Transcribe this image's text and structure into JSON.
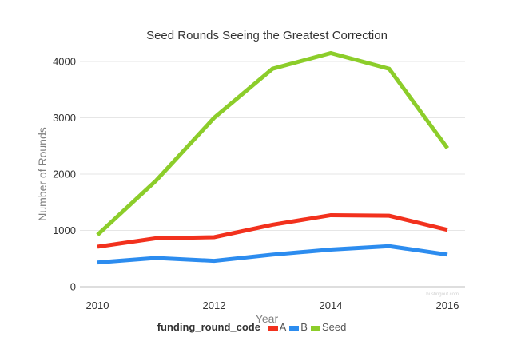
{
  "chart_data": {
    "type": "line",
    "title": "Seed Rounds Seeing the Greatest Correction",
    "xlabel": "Year",
    "ylabel": "Number of Rounds",
    "x": [
      2010,
      2011,
      2012,
      2013,
      2014,
      2015,
      2016
    ],
    "xticks": [
      "2010",
      "2012",
      "2014",
      "2016"
    ],
    "yticks": [
      "0",
      "1000",
      "2000",
      "3000",
      "4000"
    ],
    "xlim": [
      2010,
      2016
    ],
    "ylim": [
      0,
      4000
    ],
    "grid": true,
    "series": [
      {
        "name": "A",
        "color": "#f2311d",
        "values": [
          710,
          860,
          880,
          1100,
          1270,
          1260,
          1010
        ]
      },
      {
        "name": "B",
        "color": "#2c8cef",
        "values": [
          430,
          510,
          460,
          570,
          660,
          720,
          570
        ]
      },
      {
        "name": "Seed",
        "color": "#8ccd2a",
        "values": [
          920,
          1880,
          3000,
          3870,
          4150,
          3870,
          2460
        ]
      }
    ],
    "legend_title": "funding_round_code",
    "legend_position": "bottom",
    "watermark": "bustingout.com"
  }
}
